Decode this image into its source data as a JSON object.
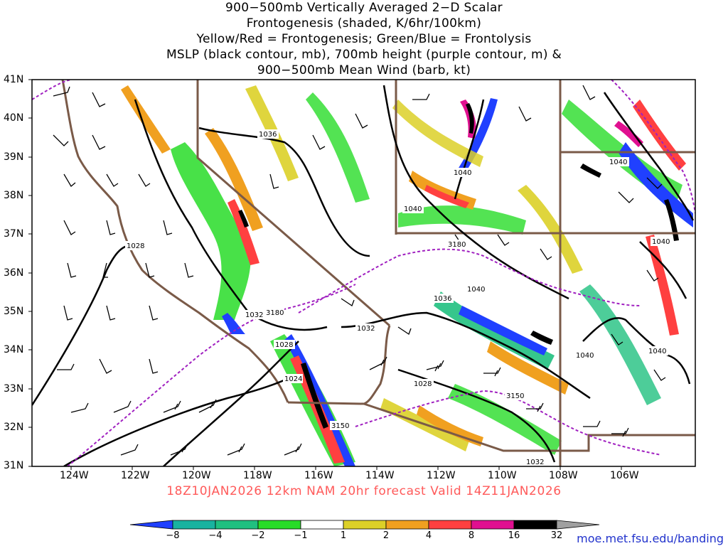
{
  "title": {
    "lines": [
      "900−500mb Vertically Averaged 2−D Scalar",
      "Frontogenesis (shaded, K/6hr/100km)",
      "Yellow/Red = Frontogenesis;  Green/Blue = Frontolysis",
      "MSLP (black contour, mb), 700mb height (purple contour, m) &",
      "900−500mb Mean Wind (barb, kt)"
    ]
  },
  "axes": {
    "lat_labels": [
      "41N",
      "40N",
      "39N",
      "38N",
      "37N",
      "36N",
      "35N",
      "34N",
      "33N",
      "32N",
      "31N"
    ],
    "lon_labels": [
      "124W",
      "122W",
      "120W",
      "118W",
      "116W",
      "114W",
      "112W",
      "110W",
      "108W",
      "106W"
    ]
  },
  "contour_labels": {
    "mslp": [
      "1036",
      "1040",
      "1040",
      "1040",
      "1040",
      "1028",
      "1040",
      "1036",
      "1032",
      "1032",
      "1040",
      "1040",
      "1028",
      "1028",
      "1024",
      "1032"
    ],
    "height": [
      "3180",
      "3150",
      "3150",
      "3180"
    ]
  },
  "run_info": "18Z10JAN2026 12km NAM 20hr forecast Valid 14Z11JAN2026",
  "colorbar": {
    "labels": [
      "−8",
      "−4",
      "−2",
      "−1",
      "1",
      "2",
      "4",
      "8",
      "16",
      "32"
    ],
    "colors": [
      "#2040ff",
      "#19b3a0",
      "#20c080",
      "#28dc28",
      "#ffffff",
      "#dcd028",
      "#f0a020",
      "#ff4040",
      "#e01090",
      "#000000",
      "#a0a0a0"
    ]
  },
  "credit": "moe.met.fsu.edu/banding",
  "colors": {
    "state_border": "#7a5a48",
    "mslp": "#000000",
    "height": "#a020c0",
    "frontolysis_strong": "#2040ff",
    "frontolysis": "#20c080",
    "frontogenesis": "#ff4040"
  }
}
